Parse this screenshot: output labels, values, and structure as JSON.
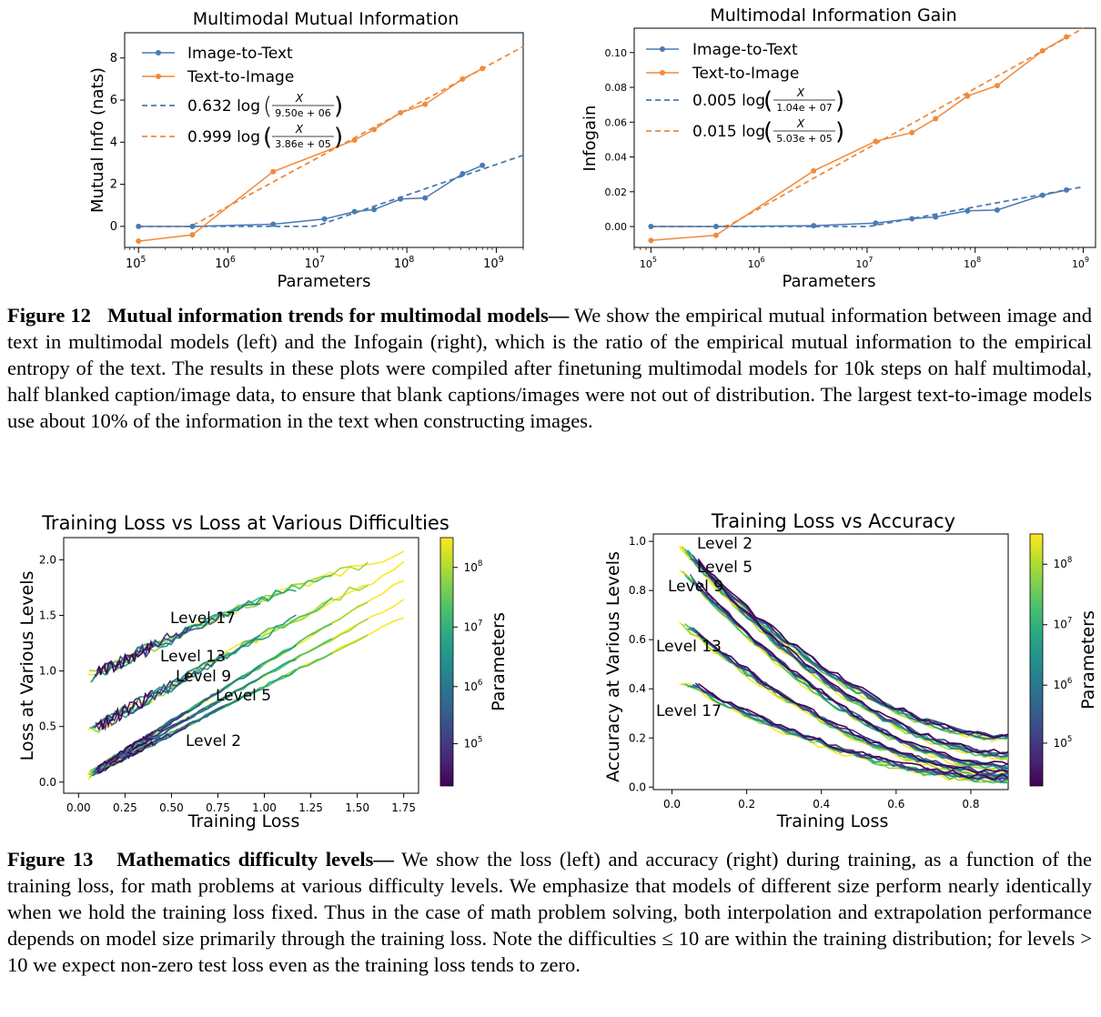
{
  "figure12": {
    "left_chart": {
      "title": "Multimodal Mutual Information",
      "xlabel": "Parameters",
      "ylabel": "Mutual Info (nats)",
      "yticks": [
        "0",
        "2",
        "4",
        "6",
        "8"
      ],
      "legend": {
        "image_to_text": "Image-to-Text",
        "text_to_image": "Text-to-Image",
        "fit1_coef": "0.632 log",
        "fit1_frac": "9.50e + 06",
        "fit2_coef": "0.999 log",
        "fit2_frac": "3.86e + 05",
        "frac_num": "X"
      }
    },
    "right_chart": {
      "title": "Multimodal Information Gain",
      "xlabel": "Parameters",
      "ylabel": "Infogain",
      "yticks": [
        "0.00",
        "0.02",
        "0.04",
        "0.06",
        "0.08",
        "0.10"
      ],
      "legend": {
        "image_to_text": "Image-to-Text",
        "text_to_image": "Text-to-Image",
        "fit1_coef": "0.005 log",
        "fit1_frac": "1.04e + 07",
        "fit2_coef": "0.015 log",
        "fit2_frac": "5.03e + 05",
        "frac_num": "X"
      }
    },
    "xtick_base": "10",
    "xtick_exps": [
      "5",
      "6",
      "7",
      "8",
      "9"
    ],
    "caption": {
      "label": "Figure 12",
      "title": "Mutual information trends for multimodal models—",
      "text": " We show the empirical mutual information between image and text in multimodal models (left) and the Infogain (right), which is the ratio of the empirical mutual information to the empirical entropy of the text. The results in these plots were compiled after finetuning multimodal models for 10k steps on half multimodal, half blanked caption/image data, to ensure that blank captions/images were not out of distribution. The largest text-to-image models use about 10% of the information in the text when constructing images."
    }
  },
  "figure13": {
    "left_chart": {
      "title": "Training Loss vs Loss at Various Difficulties",
      "xlabel": "Training Loss",
      "ylabel": "Loss at Various Levels",
      "xticks": [
        "0.00",
        "0.25",
        "0.50",
        "0.75",
        "1.00",
        "1.25",
        "1.50",
        "1.75"
      ],
      "yticks": [
        "0.0",
        "0.5",
        "1.0",
        "1.5",
        "2.0"
      ],
      "annotations": [
        "Level 17",
        "Level 13",
        "Level 9",
        "Level 5",
        "Level 2"
      ]
    },
    "right_chart": {
      "title": "Training Loss vs Accuracy",
      "xlabel": "Training Loss",
      "ylabel": "Accuracy at Various Levels",
      "xticks": [
        "0.0",
        "0.2",
        "0.4",
        "0.6",
        "0.8"
      ],
      "yticks": [
        "0.0",
        "0.2",
        "0.4",
        "0.6",
        "0.8",
        "1.0"
      ],
      "annotations": [
        "Level 2",
        "Level 5",
        "Level 9",
        "Level 13",
        "Level 17"
      ]
    },
    "colorbar": {
      "label": "Parameters",
      "tick_base": "10",
      "tick_exps": [
        "8",
        "7",
        "6",
        "5"
      ]
    },
    "caption": {
      "label": "Figure 13",
      "title": "Mathematics difficulty levels—",
      "text_before_le": " We show the loss (left) and accuracy (right) during training, as a function of the training loss, for math problems at various difficulty levels. We emphasize that models of different size perform nearly identically when we hold the training loss fixed. Thus in the case of math problem solving, both interpolation and extrapolation performance depends on model size primarily through the training loss. Note the difficulties ",
      "le_symbol": "≤ 10",
      "text_mid": " are within the training distribution; for levels ",
      "gt_symbol": "> 10",
      "text_end": " we expect non-zero test loss even as the training loss tends to zero."
    }
  },
  "colors": {
    "blue": "#4a7ab2",
    "orange": "#f08a3c",
    "axis": "#000000"
  },
  "chart_data": [
    {
      "type": "line",
      "title": "Multimodal Mutual Information",
      "xlabel": "Parameters",
      "ylabel": "Mutual Info (nats)",
      "xscale": "log",
      "xlim": [
        70000,
        2000000000
      ],
      "ylim": [
        -1,
        9.2
      ],
      "series": [
        {
          "name": "Image-to-Text",
          "x": [
            100000,
            400000,
            3200000,
            12000000,
            26000000,
            43000000,
            85000000,
            160000000,
            420000000,
            700000000
          ],
          "y": [
            0.0,
            0.0,
            0.1,
            0.35,
            0.7,
            0.8,
            1.3,
            1.35,
            2.5,
            2.9
          ]
        },
        {
          "name": "Text-to-Image",
          "x": [
            100000,
            400000,
            3200000,
            26000000,
            43000000,
            85000000,
            160000000,
            420000000,
            700000000
          ],
          "y": [
            -0.7,
            -0.4,
            2.6,
            4.1,
            4.6,
            5.4,
            5.8,
            7.0,
            7.5
          ]
        },
        {
          "name": "0.632 log(X/9.50e+06)",
          "fit": {
            "coef": 0.632,
            "x0": 9500000
          },
          "x": [
            100000,
            2000000000
          ]
        },
        {
          "name": "0.999 log(X/3.86e+05)",
          "fit": {
            "coef": 0.999,
            "x0": 386000
          },
          "x": [
            100000,
            2000000000
          ]
        }
      ]
    },
    {
      "type": "line",
      "title": "Multimodal Information Gain",
      "xlabel": "Parameters",
      "ylabel": "Infogain",
      "xscale": "log",
      "xlim": [
        70000,
        1300000000
      ],
      "ylim": [
        -0.012,
        0.114
      ],
      "series": [
        {
          "name": "Image-to-Text",
          "x": [
            100000,
            400000,
            3200000,
            12000000,
            26000000,
            43000000,
            85000000,
            160000000,
            420000000,
            700000000
          ],
          "y": [
            0.0,
            0.0,
            0.0005,
            0.002,
            0.0045,
            0.0055,
            0.009,
            0.0095,
            0.018,
            0.021
          ]
        },
        {
          "name": "Text-to-Image",
          "x": [
            100000,
            400000,
            3200000,
            12000000,
            26000000,
            43000000,
            85000000,
            160000000,
            420000000,
            700000000
          ],
          "y": [
            -0.008,
            -0.005,
            0.032,
            0.049,
            0.054,
            0.062,
            0.075,
            0.081,
            0.101,
            0.109
          ]
        },
        {
          "name": "0.005 log(X/1.04e+07)",
          "fit": {
            "coef": 0.005,
            "x0": 10400000
          },
          "x": [
            100000,
            1000000000
          ]
        },
        {
          "name": "0.015 log(X/5.03e+05)",
          "fit": {
            "coef": 0.015,
            "x0": 503000
          },
          "x": [
            100000,
            1000000000
          ]
        }
      ]
    },
    {
      "type": "line",
      "title": "Training Loss vs Loss at Various Difficulties",
      "xlabel": "Training Loss",
      "ylabel": "Loss at Various Levels",
      "xlim": [
        -0.08,
        1.83
      ],
      "ylim": [
        -0.1,
        2.2
      ],
      "series": [
        {
          "name": "Level 2",
          "x": [
            0.0,
            1.75
          ],
          "y": [
            0.0,
            1.48
          ]
        },
        {
          "name": "Level 5",
          "x": [
            0.0,
            1.75
          ],
          "y": [
            0.02,
            1.63
          ]
        },
        {
          "name": "Level 9",
          "x": [
            0.0,
            1.75
          ],
          "y": [
            0.02,
            1.82
          ]
        },
        {
          "name": "Level 13",
          "x": [
            0.0,
            1.75
          ],
          "y": [
            0.4,
            1.96
          ]
        },
        {
          "name": "Level 17",
          "x": [
            0.0,
            1.75
          ],
          "y": [
            0.9,
            2.08
          ]
        }
      ]
    },
    {
      "type": "line",
      "title": "Training Loss vs Accuracy",
      "xlabel": "Training Loss",
      "ylabel": "Accuracy at Various Levels",
      "xlim": [
        -0.05,
        0.9
      ],
      "ylim": [
        -0.01,
        1.03
      ],
      "series": [
        {
          "name": "Level 2",
          "x": [
            0.02,
            0.9
          ],
          "y": [
            0.99,
            0.2
          ]
        },
        {
          "name": "Level 5",
          "x": [
            0.02,
            0.9
          ],
          "y": [
            0.99,
            0.13
          ]
        },
        {
          "name": "Level 9",
          "x": [
            0.02,
            0.9
          ],
          "y": [
            0.9,
            0.08
          ]
        },
        {
          "name": "Level 13",
          "x": [
            0.02,
            0.9
          ],
          "y": [
            0.68,
            0.05
          ]
        },
        {
          "name": "Level 17",
          "x": [
            0.02,
            0.9
          ],
          "y": [
            0.44,
            0.03
          ]
        }
      ]
    }
  ]
}
